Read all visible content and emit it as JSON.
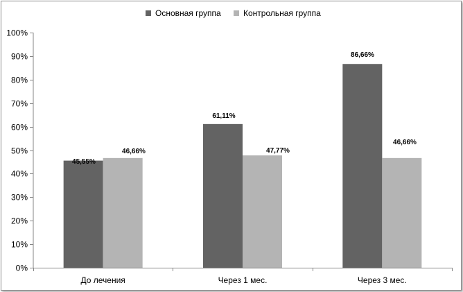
{
  "chart_data": {
    "type": "bar",
    "categories": [
      "До лечения",
      "Через 1 мес.",
      "Через 3 мес."
    ],
    "series": [
      {
        "name": "Основная группа",
        "color": "#636363",
        "values": [
          45.55,
          61.11,
          86.66
        ],
        "labels": [
          "45,55%",
          "61,11%",
          "86,66%"
        ]
      },
      {
        "name": "Контрольная группа",
        "color": "#b4b4b4",
        "values": [
          46.66,
          47.77,
          46.66
        ],
        "labels": [
          "46,66%",
          "47,77%",
          "46,66%"
        ]
      }
    ],
    "ylim": [
      0,
      100
    ],
    "yticks": [
      0,
      10,
      20,
      30,
      40,
      50,
      60,
      70,
      80,
      90,
      100
    ],
    "ytick_labels": [
      "0%",
      "10%",
      "20%",
      "30%",
      "40%",
      "50%",
      "60%",
      "70%",
      "80%",
      "90%",
      "100%"
    ],
    "grid": false,
    "legend": "top-center"
  }
}
